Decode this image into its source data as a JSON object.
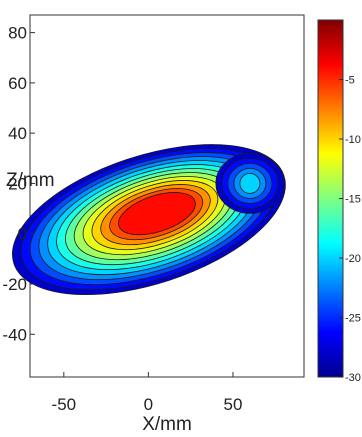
{
  "chart_data": {
    "type": "heatmap",
    "title": "",
    "xlabel": "X/mm",
    "ylabel": "Z/mm",
    "xlim": [
      -70,
      92
    ],
    "ylim": [
      -57,
      87
    ],
    "xticks": [
      -50,
      0,
      50
    ],
    "yticks": [
      -40,
      -20,
      0,
      20,
      40,
      60,
      80
    ],
    "grid": false,
    "colorbar": {
      "range": [
        -30,
        0
      ],
      "ticks": [
        -5,
        -10,
        -15,
        -20,
        -25,
        -30
      ]
    },
    "contour_levels_db": [
      -28,
      -26,
      -24,
      -22,
      -20,
      -18,
      -16,
      -14,
      -12,
      -10,
      -8,
      -6,
      -4
    ],
    "peak": {
      "x": 5,
      "z": 8,
      "value_db": 0
    },
    "secondary_lobe": {
      "x": 60,
      "z": 20,
      "value_db": -19
    }
  },
  "colors": {
    "colormap": [
      "#00008f",
      "#0000ff",
      "#0080ff",
      "#00ffff",
      "#80ff80",
      "#ffff00",
      "#ff8000",
      "#ff0000",
      "#800000"
    ],
    "outline": "#1a1a1a"
  }
}
